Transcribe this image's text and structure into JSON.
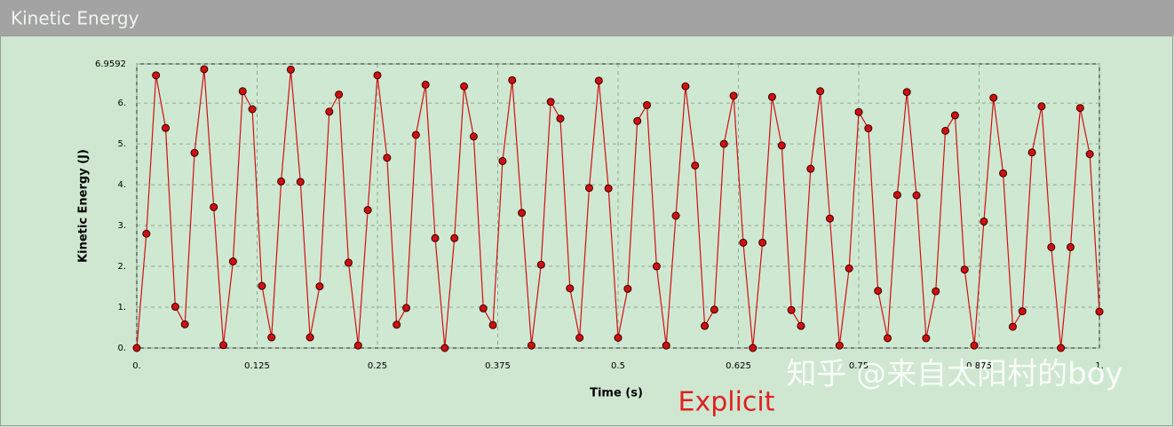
{
  "chart_data": {
    "type": "line",
    "title": "Kinetic Energy",
    "xlabel": "Time (s)",
    "ylabel": "Kinetic Energy (J)",
    "annotation": "Explicit",
    "watermark": "知乎 @来自太阳村的boy",
    "color": "#d01010",
    "grid": true,
    "x": [
      0,
      0.01,
      0.02,
      0.03,
      0.04,
      0.05,
      0.06,
      0.07,
      0.08,
      0.09,
      0.1,
      0.11,
      0.12,
      0.13,
      0.14,
      0.15,
      0.16,
      0.17,
      0.18,
      0.19,
      0.2,
      0.21,
      0.22,
      0.23,
      0.24,
      0.25,
      0.26,
      0.27,
      0.28,
      0.29,
      0.3,
      0.31,
      0.32,
      0.33,
      0.34,
      0.35,
      0.36,
      0.37,
      0.38,
      0.39,
      0.4,
      0.41,
      0.42,
      0.43,
      0.44,
      0.45,
      0.46,
      0.47,
      0.48,
      0.49,
      0.5,
      0.51,
      0.52,
      0.53,
      0.54,
      0.55,
      0.56,
      0.57,
      0.58,
      0.59,
      0.6,
      0.61,
      0.62,
      0.63,
      0.64,
      0.65,
      0.66,
      0.67,
      0.68,
      0.69,
      0.7,
      0.71,
      0.72,
      0.73,
      0.74,
      0.75,
      0.76,
      0.77,
      0.78,
      0.79,
      0.8,
      0.81,
      0.82,
      0.83,
      0.84,
      0.85,
      0.86,
      0.87,
      0.88,
      0.89,
      0.9,
      0.91,
      0.92,
      0.93,
      0.94,
      0.95,
      0.96,
      0.97,
      0.98,
      0.99,
      1
    ],
    "values": [
      0,
      2.8,
      6.68,
      5.39,
      1.01,
      0.58,
      4.78,
      6.83,
      3.45,
      0.07,
      2.12,
      6.29,
      5.85,
      1.52,
      0.26,
      4.08,
      6.82,
      4.07,
      0.26,
      1.51,
      5.79,
      6.21,
      2.09,
      0.06,
      3.38,
      6.68,
      4.66,
      0.57,
      0.98,
      5.22,
      6.45,
      2.69,
      0,
      2.69,
      6.41,
      5.18,
      0.97,
      0.56,
      4.58,
      6.56,
      3.31,
      0.06,
      2.04,
      6.03,
      5.62,
      1.46,
      0.25,
      3.92,
      6.55,
      3.91,
      0.25,
      1.45,
      5.56,
      5.95,
      2.0,
      0.06,
      3.24,
      6.41,
      4.47,
      0.54,
      0.94,
      5.0,
      6.18,
      2.58,
      0,
      2.58,
      6.15,
      4.96,
      0.93,
      0.54,
      4.39,
      6.29,
      3.17,
      0.06,
      1.95,
      5.78,
      5.38,
      1.4,
      0.24,
      3.75,
      6.27,
      3.74,
      0.24,
      1.39,
      5.32,
      5.7,
      1.92,
      0.06,
      3.1,
      6.13,
      4.28,
      0.52,
      0.9,
      4.79,
      5.92,
      2.47,
      0,
      2.47,
      5.88,
      4.75,
      0.89
    ],
    "xlim": [
      0,
      1
    ],
    "xticks": [
      {
        "value": 0,
        "label": "0."
      },
      0.125,
      0.25,
      0.375,
      0.5,
      0.625,
      0.75,
      0.875,
      {
        "value": 1,
        "label": "1."
      }
    ],
    "ylim": [
      0,
      6.9592
    ],
    "yticks": [
      {
        "value": 0,
        "label": "0."
      },
      {
        "value": 1,
        "label": "1."
      },
      {
        "value": 2,
        "label": "2."
      },
      {
        "value": 3,
        "label": "3."
      },
      {
        "value": 4,
        "label": "4."
      },
      {
        "value": 5,
        "label": "5."
      },
      {
        "value": 6,
        "label": "6."
      },
      6.9592
    ]
  }
}
